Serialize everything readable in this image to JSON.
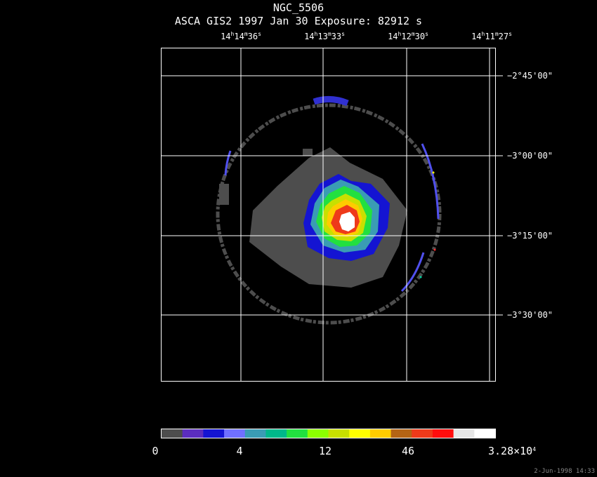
{
  "header": {
    "object": "NGC_5506",
    "info_line": "ASCA GIS2   1997 Jan 30    Exposure: 82912 s"
  },
  "ra_labels": [
    {
      "h": "14",
      "m": "14",
      "s": "36"
    },
    {
      "h": "14",
      "m": "13",
      "s": "33"
    },
    {
      "h": "14",
      "m": "12",
      "s": "30"
    },
    {
      "h": "14",
      "m": "11",
      "s": "27"
    }
  ],
  "dec_labels": [
    "−2°45'00\"",
    "−3°00'00\"",
    "−3°15'00\"",
    "−3°30'00\""
  ],
  "colorbar": {
    "colors": [
      "#4d4d4d",
      "#5b2dbe",
      "#1414d2",
      "#7070ff",
      "#3a9cb4",
      "#00b88a",
      "#22e040",
      "#8cff00",
      "#c8e000",
      "#ffff00",
      "#ffcc00",
      "#b46414",
      "#ee3a1a",
      "#ff0d0d",
      "#e6e6e6",
      "#ffffff"
    ],
    "tick_labels": [
      "0",
      "4",
      "12",
      "46"
    ],
    "max_label": "3.28×10",
    "max_exponent": "4"
  },
  "footer": {
    "timestamp": "2-Jun-1998 14:33"
  }
}
